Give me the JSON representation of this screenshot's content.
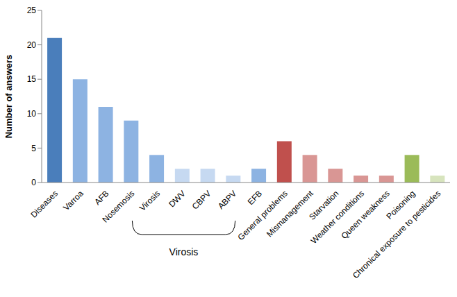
{
  "chart_data": {
    "type": "bar",
    "y_label": "Number of answers",
    "categories": [
      "Diseases",
      "Varroa",
      "AFB",
      "Nosemosis",
      "Virosis",
      "DWV",
      "CBPV",
      "ABPV",
      "EFB",
      "General problems",
      "Mismanagement",
      "Starvation",
      "Weather conditions",
      "Queen weakness",
      "Poisoning",
      "Chronical exposure to pesticides"
    ],
    "values": [
      21,
      15,
      11,
      9,
      4,
      2,
      2,
      1,
      2,
      6,
      4,
      2,
      1,
      1,
      4,
      1
    ],
    "colors": [
      "#4a7ebb",
      "#8db3e2",
      "#8db3e2",
      "#8db3e2",
      "#8db3e2",
      "#c6d9f1",
      "#c6d9f1",
      "#c6d9f1",
      "#8db3e2",
      "#c0504d",
      "#d99694",
      "#d99694",
      "#d99694",
      "#d99694",
      "#9bbb59",
      "#d7e4bd"
    ],
    "ylim": [
      0,
      25
    ],
    "yticks": [
      0,
      5,
      10,
      15,
      20,
      25
    ],
    "grid": false,
    "annotations": [
      "Virosis"
    ]
  }
}
